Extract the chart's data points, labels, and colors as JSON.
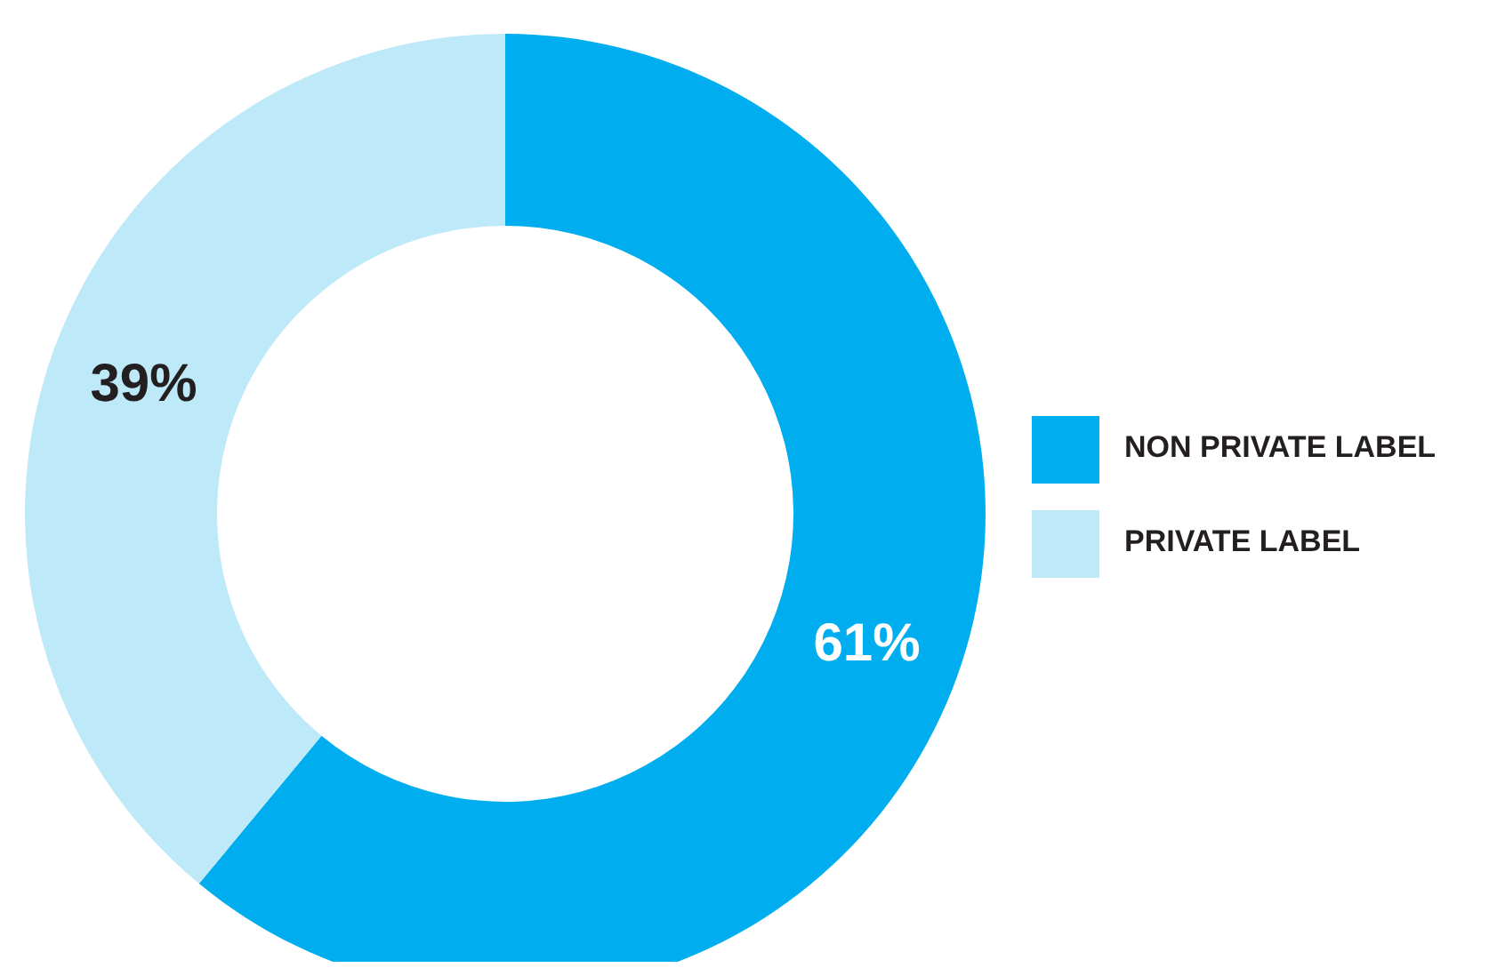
{
  "chart_data": {
    "type": "donut",
    "categories": [
      "NON PRIVATE LABEL",
      "PRIVATE LABEL"
    ],
    "values": [
      61,
      39
    ],
    "colors": [
      "#00aeef",
      "#bde9f8"
    ],
    "value_labels": [
      "61%",
      "39%"
    ],
    "legend": "right"
  }
}
